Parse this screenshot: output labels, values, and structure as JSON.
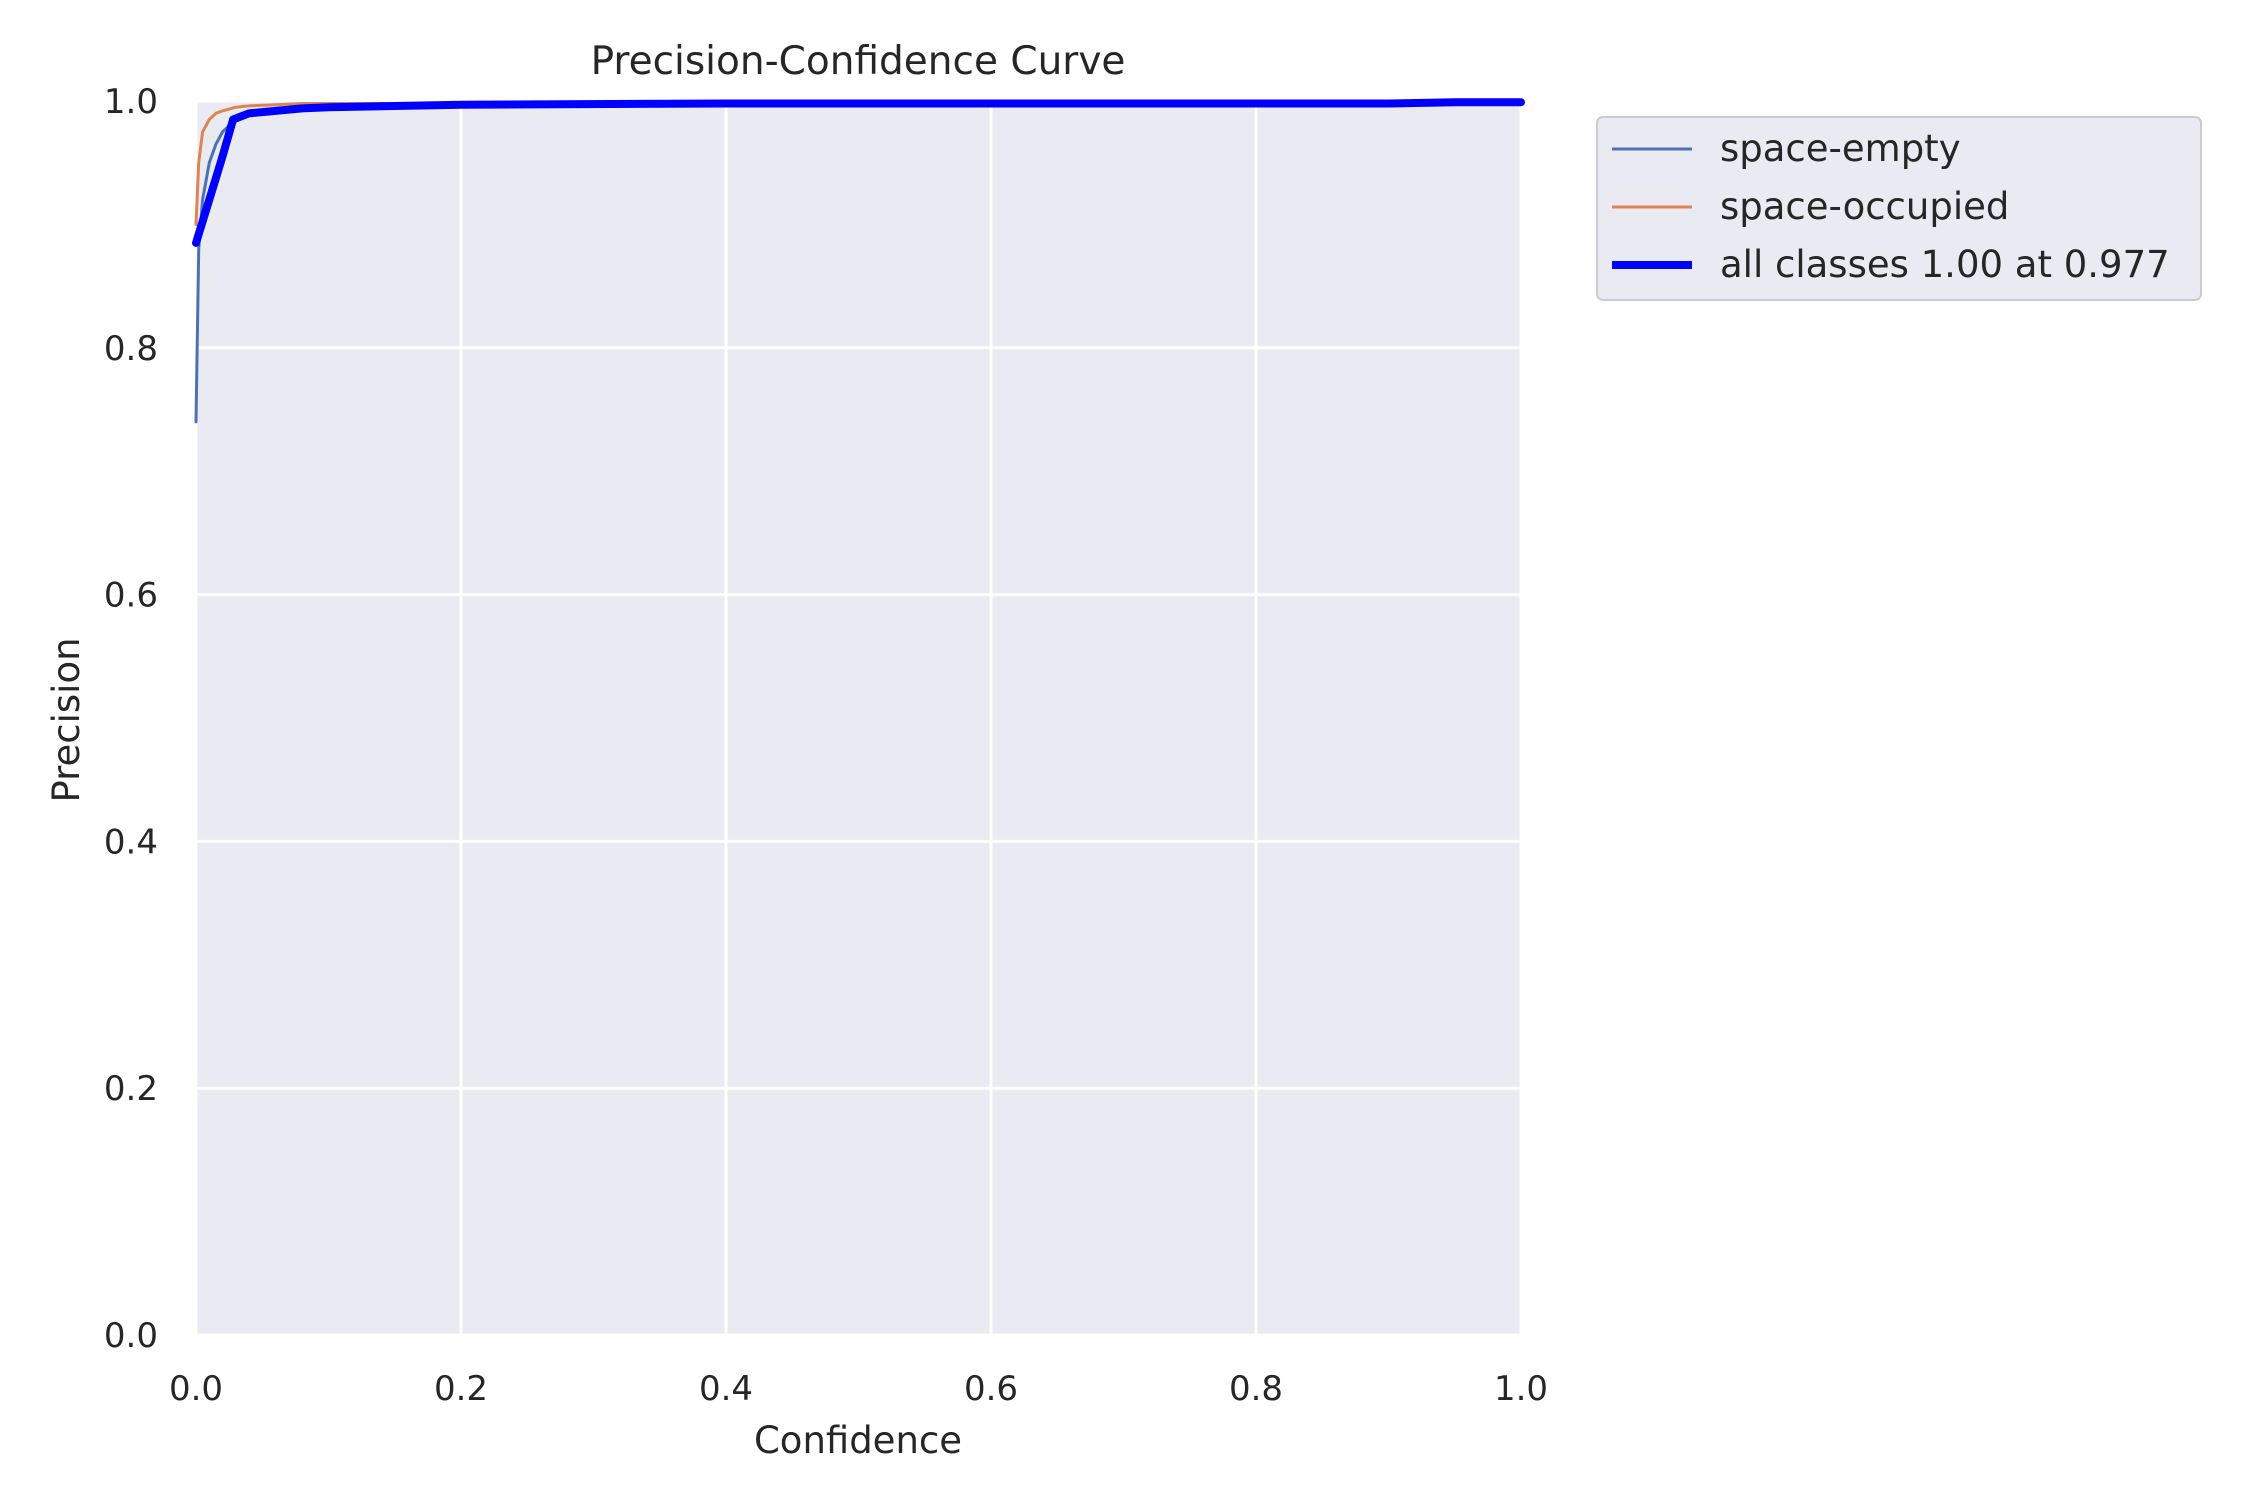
{
  "chart_data": {
    "type": "line",
    "title": "Precision-Confidence Curve",
    "xlabel": "Confidence",
    "ylabel": "Precision",
    "xlim": [
      0,
      1
    ],
    "ylim": [
      0,
      1
    ],
    "xticks": [
      "0.0",
      "0.2",
      "0.4",
      "0.6",
      "0.8",
      "1.0"
    ],
    "yticks": [
      "0.0",
      "0.2",
      "0.4",
      "0.6",
      "0.8",
      "1.0"
    ],
    "grid": true,
    "legend_position": "outside-top-right",
    "background_color": "#eaeaf2",
    "grid_color": "#ffffff",
    "series": [
      {
        "name": "space-empty",
        "color": "#4c72b0",
        "x": [
          0,
          0.002,
          0.005,
          0.01,
          0.015,
          0.02,
          0.03,
          0.045,
          0.06,
          0.08,
          0.1,
          0.2,
          0.4,
          0.6,
          0.8,
          0.9,
          0.95,
          1.0
        ],
        "y": [
          0.74,
          0.88,
          0.92,
          0.95,
          0.965,
          0.975,
          0.985,
          0.99,
          0.993,
          0.995,
          0.996,
          0.997,
          0.998,
          0.998,
          0.998,
          0.998,
          0.999,
          0.999
        ]
      },
      {
        "name": "space-occupied",
        "color": "#dd8452",
        "x": [
          0,
          0.002,
          0.005,
          0.01,
          0.015,
          0.02,
          0.03,
          0.04,
          0.06,
          0.08,
          0.1,
          0.2,
          0.4,
          0.6,
          0.8,
          0.9,
          0.95,
          1.0
        ],
        "y": [
          0.9,
          0.95,
          0.975,
          0.985,
          0.99,
          0.992,
          0.995,
          0.996,
          0.997,
          0.998,
          0.998,
          0.998,
          0.998,
          0.998,
          0.998,
          0.998,
          0.999,
          0.999
        ]
      },
      {
        "name": "all classes 1.00 at 0.977",
        "color": "#0000ff",
        "x": [
          0,
          0.01,
          0.02,
          0.028,
          0.04,
          0.06,
          0.08,
          0.1,
          0.2,
          0.4,
          0.6,
          0.8,
          0.9,
          0.95,
          1.0
        ],
        "y": [
          0.885,
          0.92,
          0.955,
          0.985,
          0.99,
          0.992,
          0.994,
          0.995,
          0.997,
          0.998,
          0.998,
          0.998,
          0.998,
          0.999,
          0.999
        ]
      }
    ]
  }
}
